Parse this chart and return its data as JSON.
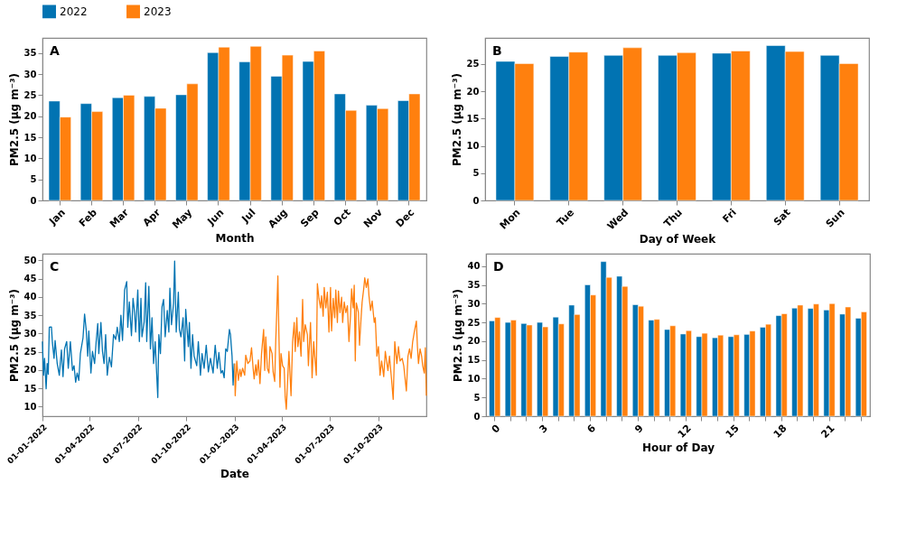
{
  "chart_data": [
    {
      "type": "bar",
      "legend": "top",
      "annotations": [
        "A"
      ],
      "xlabel": "Month",
      "ylabel": "PM2.5 (μg m⁻³)",
      "categories": [
        "Jan",
        "Feb",
        "Mar",
        "Apr",
        "May",
        "Jun",
        "Jul",
        "Aug",
        "Sep",
        "Oct",
        "Nov",
        "Dec"
      ],
      "ylim": [
        0,
        38.6
      ],
      "yticks": [
        0,
        5,
        10,
        15,
        20,
        25,
        30,
        35
      ],
      "series": [
        {
          "name": "2022",
          "color": "#0173b2",
          "values": [
            23.6,
            23.0,
            24.4,
            24.7,
            25.1,
            35.1,
            32.9,
            29.5,
            33.0,
            25.3,
            22.6,
            23.7
          ]
        },
        {
          "name": "2023",
          "color": "#ff800e",
          "values": [
            19.8,
            21.1,
            25.0,
            21.9,
            27.7,
            36.4,
            36.6,
            34.5,
            35.5,
            21.4,
            21.8,
            25.3
          ]
        }
      ]
    },
    {
      "type": "bar",
      "annotations": [
        "B"
      ],
      "xlabel": "Day of Week",
      "ylabel": "PM2.5 (μg m⁻³)",
      "categories": [
        "Mon",
        "Tue",
        "Wed",
        "Thu",
        "Fri",
        "Sat",
        "Sun"
      ],
      "ylim": [
        0,
        29.8
      ],
      "yticks": [
        0,
        5,
        10,
        15,
        20,
        25
      ],
      "series": [
        {
          "name": "2022",
          "color": "#0173b2",
          "values": [
            25.5,
            26.4,
            26.6,
            26.6,
            27.0,
            28.4,
            26.6
          ]
        },
        {
          "name": "2023",
          "color": "#ff800e",
          "values": [
            25.1,
            27.2,
            28.0,
            27.1,
            27.4,
            27.3,
            25.1
          ]
        }
      ]
    },
    {
      "type": "line",
      "annotations": [
        "C"
      ],
      "xlabel": "Date",
      "ylabel": "PM2.5 (μg m⁻³)",
      "xlim": [
        "2022-01-01",
        "2023-12-31"
      ],
      "xticks": [
        {
          "value": "2022-01-01",
          "label": "01-01-2022"
        },
        {
          "value": "2022-04-01",
          "label": "01-04-2022"
        },
        {
          "value": "2022-07-01",
          "label": "01-07-2022"
        },
        {
          "value": "2022-10-01",
          "label": "01-10-2022"
        },
        {
          "value": "2023-01-01",
          "label": "01-01-2023"
        },
        {
          "value": "2023-04-01",
          "label": "01-04-2023"
        },
        {
          "value": "2023-07-01",
          "label": "01-07-2023"
        },
        {
          "value": "2023-10-01",
          "label": "01-10-2023"
        }
      ],
      "ylim": [
        7.4,
        51.8
      ],
      "yticks": [
        10,
        15,
        20,
        25,
        30,
        35,
        40,
        45,
        50
      ],
      "series": [
        {
          "name": "2022",
          "color": "#0173b2",
          "x": [
            "2022-01-01",
            "2022-01-03",
            "2022-01-05",
            "2022-01-08",
            "2022-01-10",
            "2022-01-12",
            "2022-01-14",
            "2022-01-18",
            "2022-01-20",
            "2022-01-23",
            "2022-01-25",
            "2022-01-29",
            "2022-02-02",
            "2022-02-06",
            "2022-02-09",
            "2022-02-12",
            "2022-02-16",
            "2022-02-19",
            "2022-02-23",
            "2022-02-27",
            "2022-03-02",
            "2022-03-05",
            "2022-03-08",
            "2022-03-11",
            "2022-03-14",
            "2022-03-19",
            "2022-03-22",
            "2022-03-25",
            "2022-03-28",
            "2022-03-30",
            "2022-04-03",
            "2022-04-06",
            "2022-04-10",
            "2022-04-13",
            "2022-04-16",
            "2022-04-18",
            "2022-04-22",
            "2022-04-25",
            "2022-04-28",
            "2022-05-01",
            "2022-05-04",
            "2022-05-08",
            "2022-05-12",
            "2022-05-16",
            "2022-05-20",
            "2022-05-23",
            "2022-05-27",
            "2022-05-30",
            "2022-06-02",
            "2022-06-06",
            "2022-06-10",
            "2022-06-12",
            "2022-06-15",
            "2022-06-19",
            "2022-06-22",
            "2022-06-25",
            "2022-06-27",
            "2022-07-01",
            "2022-07-04",
            "2022-07-07",
            "2022-07-09",
            "2022-07-13",
            "2022-07-16",
            "2022-07-18",
            "2022-07-22",
            "2022-07-25",
            "2022-07-28",
            "2022-07-31",
            "2022-08-03",
            "2022-08-08",
            "2022-08-10",
            "2022-08-13",
            "2022-08-16",
            "2022-08-19",
            "2022-08-22",
            "2022-08-26",
            "2022-08-29",
            "2022-08-31",
            "2022-09-03",
            "2022-09-07",
            "2022-09-09",
            "2022-09-12",
            "2022-09-16",
            "2022-09-18",
            "2022-09-21",
            "2022-09-25",
            "2022-09-28",
            "2022-09-30",
            "2022-10-05",
            "2022-10-07",
            "2022-10-10",
            "2022-10-13",
            "2022-10-16",
            "2022-10-21",
            "2022-10-24",
            "2022-10-28",
            "2022-10-31",
            "2022-11-04",
            "2022-11-08",
            "2022-11-12",
            "2022-11-16",
            "2022-11-17",
            "2022-11-21",
            "2022-11-25",
            "2022-11-29",
            "2022-12-02",
            "2022-12-06",
            "2022-12-09",
            "2022-12-12",
            "2022-12-15",
            "2022-12-18",
            "2022-12-22",
            "2022-12-24",
            "2022-12-27",
            "2022-12-29",
            "2022-12-31"
          ],
          "values": [
            27.8,
            18.6,
            23.2,
            14.9,
            21.8,
            18.9,
            31.7,
            31.8,
            27.4,
            23.2,
            28.1,
            21.8,
            18.6,
            25.5,
            18.2,
            25.8,
            27.8,
            20.5,
            27.8,
            19.9,
            21.2,
            16.7,
            19.2,
            17.2,
            24.5,
            28.8,
            35.3,
            31.1,
            23.8,
            30.7,
            19.2,
            25.1,
            21.8,
            27.8,
            32.7,
            24.5,
            33.0,
            25.1,
            21.8,
            29.7,
            18.6,
            23.5,
            20.9,
            29.7,
            28.4,
            31.7,
            27.8,
            35.0,
            28.1,
            41.9,
            44.2,
            31.7,
            38.6,
            29.4,
            39.6,
            35.7,
            30.4,
            41.9,
            27.8,
            39.6,
            29.1,
            33.0,
            43.9,
            27.8,
            42.9,
            25.8,
            34.3,
            21.8,
            27.8,
            12.5,
            29.7,
            24.5,
            37.3,
            39.3,
            29.1,
            36.3,
            30.4,
            42.4,
            32.4,
            38.3,
            49.8,
            30.4,
            41.3,
            31.1,
            29.1,
            34.3,
            22.5,
            36.6,
            26.4,
            33.0,
            20.5,
            29.7,
            23.8,
            21.2,
            27.8,
            18.6,
            24.5,
            20.5,
            26.8,
            19.5,
            23.2,
            22.5,
            19.2,
            26.8,
            20.5,
            24.8,
            19.2,
            19.9,
            17.9,
            25.8,
            25.1,
            31.1,
            29.7,
            23.8,
            15.9,
            21.8
          ]
        },
        {
          "name": "2023",
          "color": "#ff800e",
          "x": [
            "2023-01-01",
            "2023-01-02",
            "2023-01-05",
            "2023-01-08",
            "2023-01-11",
            "2023-01-13",
            "2023-01-16",
            "2023-01-20",
            "2023-01-22",
            "2023-01-26",
            "2023-01-30",
            "2023-02-02",
            "2023-02-05",
            "2023-02-07",
            "2023-02-10",
            "2023-02-12",
            "2023-02-15",
            "2023-02-18",
            "2023-02-21",
            "2023-02-25",
            "2023-02-27",
            "2023-03-01",
            "2023-03-04",
            "2023-03-07",
            "2023-03-09",
            "2023-03-13",
            "2023-03-15",
            "2023-03-18",
            "2023-03-20",
            "2023-03-22",
            "2023-03-24",
            "2023-03-26",
            "2023-03-28",
            "2023-03-30",
            "2023-04-02",
            "2023-04-05",
            "2023-04-07",
            "2023-04-09",
            "2023-04-12",
            "2023-04-14",
            "2023-04-18",
            "2023-04-21",
            "2023-04-24",
            "2023-04-26",
            "2023-04-29",
            "2023-05-01",
            "2023-05-04",
            "2023-05-07",
            "2023-05-10",
            "2023-05-12",
            "2023-05-15",
            "2023-05-19",
            "2023-05-21",
            "2023-05-25",
            "2023-05-28",
            "2023-05-31",
            "2023-06-02",
            "2023-06-05",
            "2023-06-07",
            "2023-06-10",
            "2023-06-13",
            "2023-06-15",
            "2023-06-18",
            "2023-06-20",
            "2023-06-23",
            "2023-06-26",
            "2023-06-29",
            "2023-07-02",
            "2023-07-04",
            "2023-07-07",
            "2023-07-10",
            "2023-07-12",
            "2023-07-15",
            "2023-07-17",
            "2023-07-20",
            "2023-07-23",
            "2023-07-25",
            "2023-07-28",
            "2023-07-31",
            "2023-08-03",
            "2023-08-06",
            "2023-08-09",
            "2023-08-11",
            "2023-08-14",
            "2023-08-16",
            "2023-08-18",
            "2023-08-20",
            "2023-08-24",
            "2023-08-26",
            "2023-08-29",
            "2023-08-31",
            "2023-09-03",
            "2023-09-05",
            "2023-09-08",
            "2023-09-11",
            "2023-09-13",
            "2023-09-16",
            "2023-09-19",
            "2023-09-23",
            "2023-09-25",
            "2023-09-28",
            "2023-10-01",
            "2023-10-04",
            "2023-10-07",
            "2023-10-11",
            "2023-10-14",
            "2023-10-19",
            "2023-10-22",
            "2023-10-26",
            "2023-10-29",
            "2023-11-01",
            "2023-11-05",
            "2023-11-08",
            "2023-11-11",
            "2023-11-15",
            "2023-11-18",
            "2023-11-23",
            "2023-11-26",
            "2023-11-29",
            "2023-12-02",
            "2023-12-05",
            "2023-12-08",
            "2023-12-12",
            "2023-12-14",
            "2023-12-16",
            "2023-12-19",
            "2023-12-22",
            "2023-12-24",
            "2023-12-27",
            "2023-12-29",
            "2023-12-31"
          ],
          "values": [
            21.8,
            13.0,
            22.5,
            17.2,
            20.2,
            18.2,
            20.5,
            18.6,
            24.1,
            21.8,
            22.5,
            26.1,
            20.5,
            17.6,
            21.5,
            18.6,
            22.8,
            16.3,
            24.5,
            31.1,
            19.9,
            29.1,
            20.5,
            19.2,
            26.4,
            24.5,
            19.5,
            16.9,
            28.1,
            36.3,
            45.7,
            29.7,
            15.3,
            24.5,
            21.2,
            20.5,
            12.6,
            9.3,
            18.6,
            25.1,
            13.0,
            27.8,
            33.0,
            25.1,
            34.3,
            26.4,
            30.4,
            23.8,
            39.3,
            27.8,
            32.4,
            29.7,
            21.2,
            33.0,
            17.9,
            27.8,
            23.8,
            18.6,
            43.6,
            39.6,
            37.0,
            40.3,
            34.7,
            42.6,
            37.0,
            41.3,
            30.4,
            42.6,
            30.7,
            39.6,
            34.3,
            41.9,
            33.0,
            41.6,
            35.7,
            39.9,
            33.0,
            38.6,
            35.7,
            37.6,
            27.8,
            35.0,
            42.2,
            37.0,
            43.2,
            22.5,
            38.3,
            35.7,
            26.8,
            34.3,
            38.6,
            42.2,
            45.2,
            42.6,
            44.9,
            40.3,
            36.3,
            38.9,
            33.0,
            34.3,
            23.8,
            26.4,
            18.6,
            22.5,
            18.2,
            25.1,
            19.9,
            23.8,
            17.2,
            12.0,
            27.8,
            21.8,
            26.4,
            22.5,
            23.2,
            21.2,
            14.3,
            23.8,
            25.8,
            23.2,
            27.8,
            30.4,
            33.4,
            26.4,
            21.8,
            25.8,
            23.8,
            21.2,
            19.2,
            26.1,
            13.0
          ]
        }
      ]
    },
    {
      "type": "bar",
      "annotations": [
        "D"
      ],
      "xlabel": "Hour of Day",
      "ylabel": "PM2.5 (μg m⁻³)",
      "categories": [
        "0",
        null,
        null,
        "3",
        null,
        null,
        "6",
        null,
        null,
        "9",
        null,
        null,
        "12",
        null,
        null,
        "15",
        null,
        null,
        "18",
        null,
        null,
        "21",
        null,
        null
      ],
      "ylim": [
        0,
        43.3
      ],
      "yticks": [
        0,
        5,
        10,
        15,
        20,
        25,
        30,
        35,
        40
      ],
      "series": [
        {
          "name": "2022",
          "color": "#0173b2",
          "values": [
            25.4,
            25.0,
            24.7,
            25.0,
            26.4,
            29.6,
            35.0,
            41.2,
            37.3,
            29.7,
            25.6,
            23.1,
            21.9,
            21.2,
            20.9,
            21.2,
            21.8,
            23.7,
            26.8,
            28.8,
            28.7,
            28.3,
            27.2,
            26.1
          ]
        },
        {
          "name": "2023",
          "color": "#ff800e",
          "values": [
            26.3,
            25.6,
            24.3,
            23.8,
            24.6,
            27.1,
            32.3,
            37.0,
            34.6,
            29.3,
            25.8,
            24.1,
            22.8,
            22.1,
            21.6,
            21.7,
            22.7,
            24.5,
            27.3,
            29.6,
            29.9,
            30.0,
            29.1,
            27.8
          ]
        }
      ]
    }
  ]
}
